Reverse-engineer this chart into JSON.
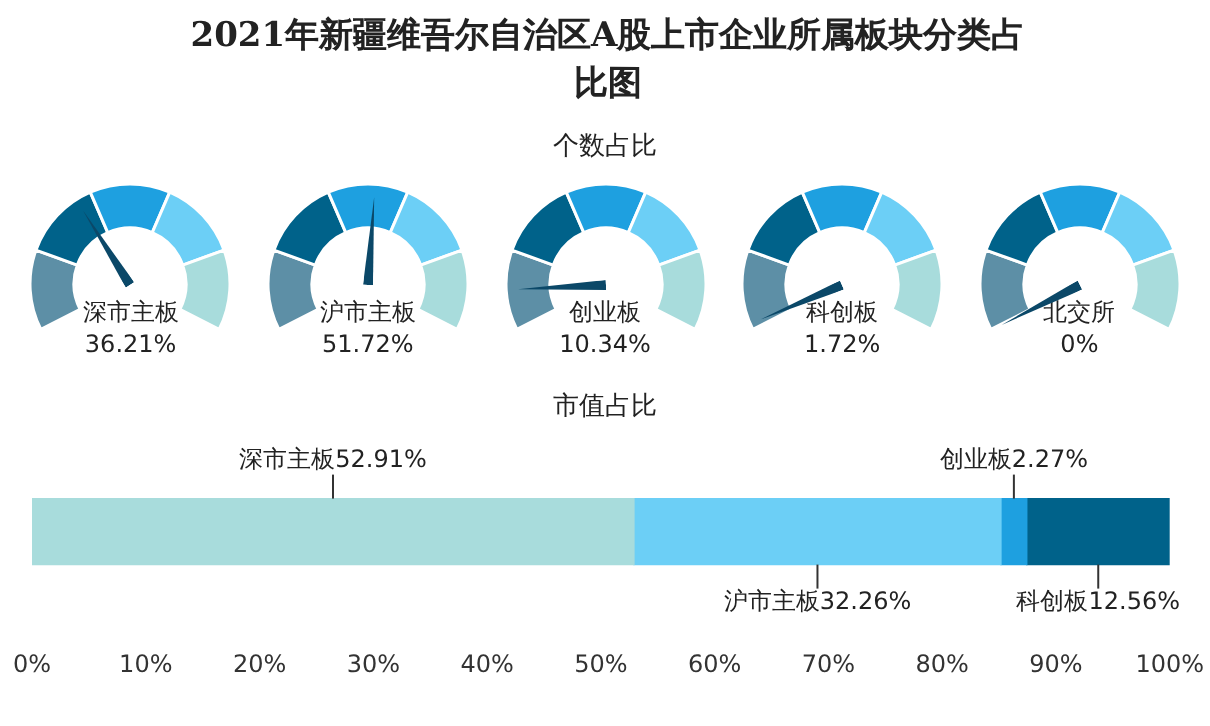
{
  "chart_data": [
    {
      "type": "other",
      "title": "2021年新疆维吾尔自治区A股上市企业所属板块分类占比图",
      "subtitle": "个数占比",
      "categories": [
        "深市主板",
        "沪市主板",
        "创业板",
        "科创板",
        "北交所"
      ],
      "values": [
        36.21,
        51.72,
        10.34,
        1.72,
        0
      ],
      "value_labels": [
        "36.21%",
        "51.72%",
        "10.34%",
        "1.72%",
        "0%"
      ],
      "colors": [
        "#5d8fa6",
        "#00628a",
        "#1ea0e0",
        "#6ccff6",
        "#a8dcdc"
      ]
    },
    {
      "type": "bar",
      "title": "市值占比",
      "orientation": "horizontal",
      "stacked": true,
      "categories": [
        null
      ],
      "series": [
        {
          "name": "深市主板",
          "color": "#a8dcdc",
          "values": [
            52.91
          ],
          "value_labels": [
            "52.91%"
          ]
        },
        {
          "name": "沪市主板",
          "color": "#6ccff6",
          "values": [
            32.26
          ],
          "value_labels": [
            "32.26%"
          ]
        },
        {
          "name": "创业板",
          "color": "#1ea0e0",
          "values": [
            2.27
          ],
          "value_labels": [
            "2.27%"
          ]
        },
        {
          "name": "科创板",
          "color": "#00628a",
          "values": [
            12.56
          ],
          "value_labels": [
            "12.56%"
          ]
        }
      ],
      "xlim": [
        0,
        100
      ],
      "xticks": [
        {
          "value": 0,
          "label": "0%"
        },
        {
          "value": 10,
          "label": "10%"
        },
        {
          "value": 20,
          "label": "20%"
        },
        {
          "value": 30,
          "label": "30%"
        },
        {
          "value": 40,
          "label": "40%"
        },
        {
          "value": 50,
          "label": "50%"
        },
        {
          "value": 60,
          "label": "60%"
        },
        {
          "value": 70,
          "label": "70%"
        },
        {
          "value": 80,
          "label": "80%"
        },
        {
          "value": 90,
          "label": "90%"
        },
        {
          "value": 100,
          "label": "100%"
        }
      ]
    }
  ]
}
